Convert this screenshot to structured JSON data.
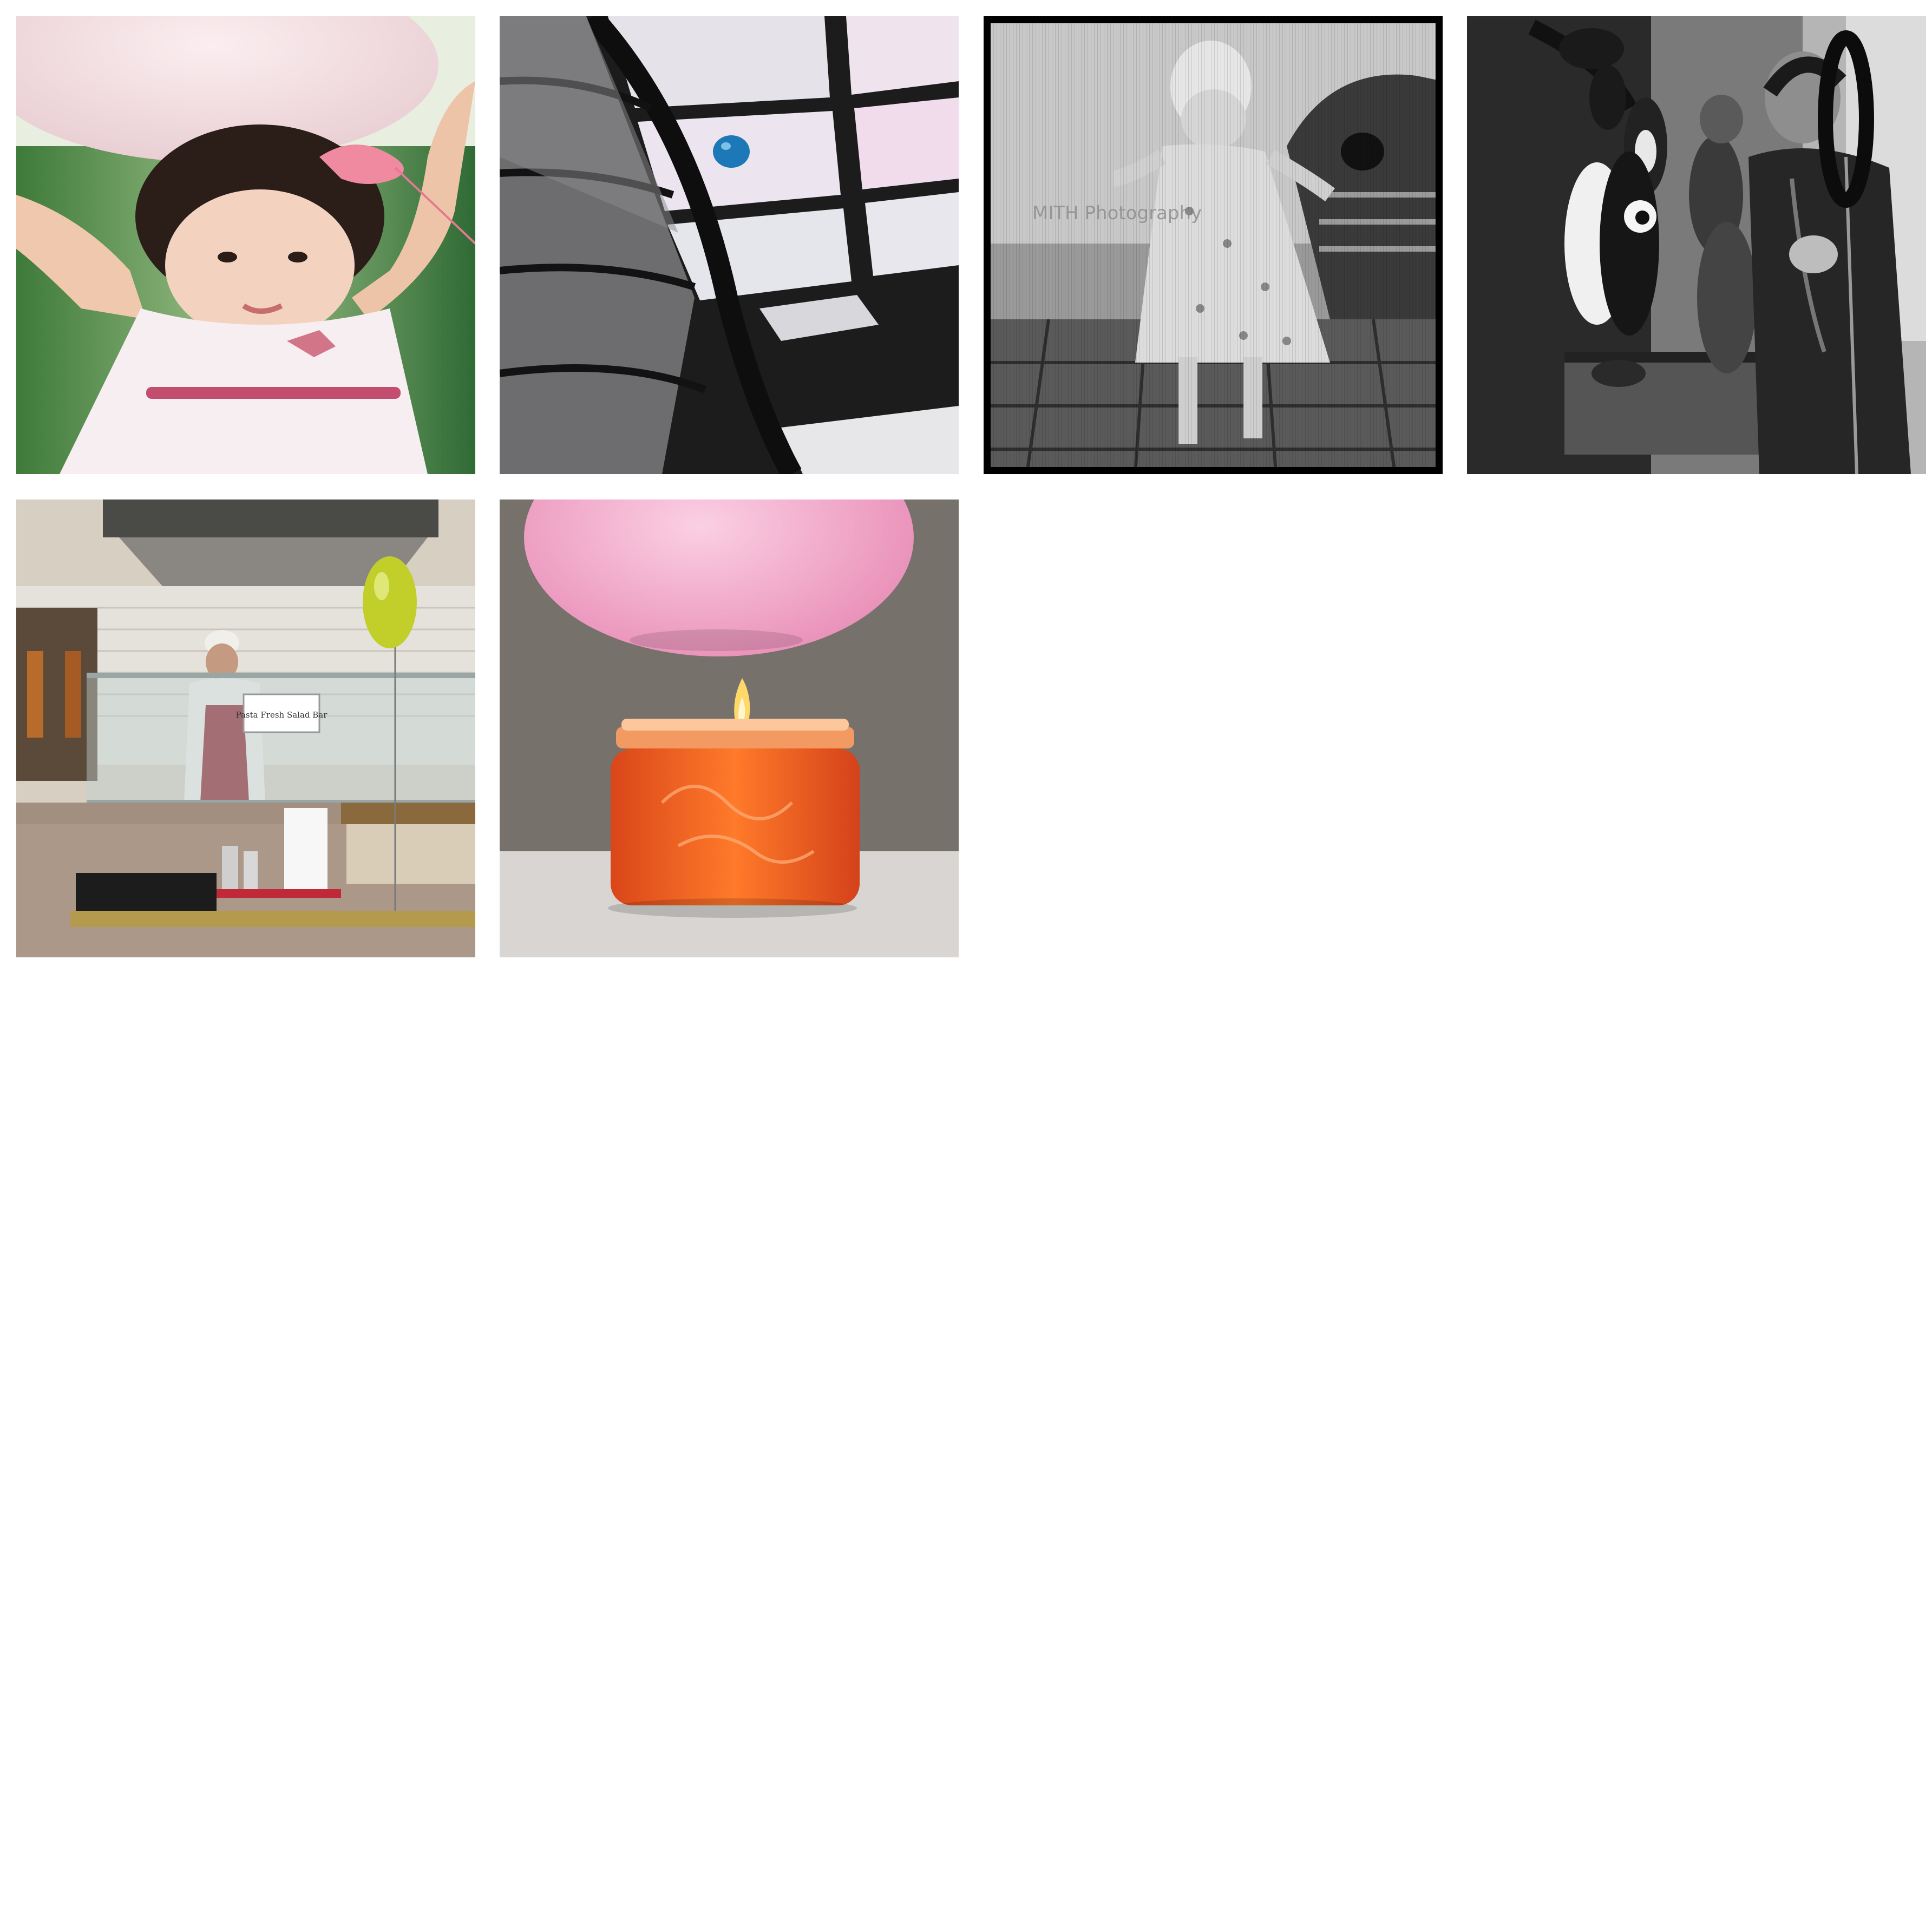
{
  "gallery": {
    "photos": [
      {
        "subject": "toddler holding pink balloon"
      },
      {
        "subject": "blue balloon against skylight"
      },
      {
        "subject": "toddler in dress by bench"
      },
      {
        "subject": "balloon artist with balloon animals"
      },
      {
        "subject": "restaurant counter with yellow balloon"
      },
      {
        "subject": "pink balloon above orange candle"
      }
    ],
    "watermark": "MITH Photography",
    "sign_text": "Pasta Fresh Salad Bar"
  }
}
